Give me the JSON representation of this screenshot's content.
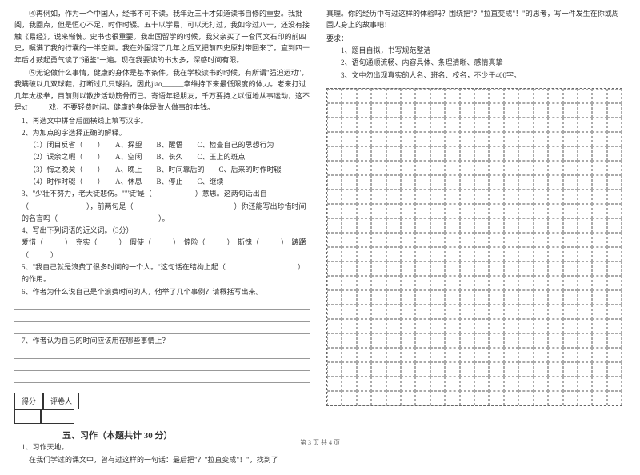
{
  "left": {
    "p4": "④再例如，作为一个中国人，经书不可不读。我年近三十才知道读书自修的重要。我批阅，我圈点，但是恒心不足，时作时辍。五十以学易，可以无打过，我如今过八十，还没有接触《易经》，说来惭愧。史书也很重要。我出国留学的时候，我父亲买了一套同文石印的前四史，嘱满了我的行囊的一半空间。我在外国混了几年之后又把前四史原封带回来了。直到四十年后才鼓起勇气读了\"通鉴\"一遍。现在我要读的书太多，深感时间有限。",
    "p5_a": "⑤无论做什么事情，健康的身体是基本条件。我在学校读书的时候，有所谓\"强迫运动\"，我瞒破以几双球鞋，打断过几只球拍，因此jiāo______幸维持下来最低限度的体力。老来打过几年太极拳，目前则以散步活动筋骨而已。寄语年轻朋友，千万要持之以恒地从事运动，这不是xī______戏，不要轻费时间。健康的身体是做人做事的本钱。",
    "q1": "1、再选文中拼音后面横线上填写汉字。",
    "q2": "2、为加点的字选择正确的解释。",
    "q2_1": "（1）闭目反省（　　）　　A、探望　　B、醒悟　　C、检查自己的思想行为",
    "q2_2": "（2）误余之暇（　　）　　A、空闲　　B、长久　　C、玉上的斑点",
    "q2_3": "（3）悔之晚矣（　　）　　A、晚上　　B、时间靠后的　　C、后来的时作时辍",
    "q2_4": "（4）时作时辍（　　）　　A、休息　　B、停止　　C、继续",
    "q3": "3、\"少壮不努力，老大徒悲伤。\"\"'徒'是（　　　　　　）意思。这两句话出自（　　　　　　　　），前两句是（　　　　　　　　　　　　　　）你还能写出珍惜时间的名言吗（　　　　　　　　　　　　　　）。",
    "q4": "4、写出下列词语的近义词。（3分）",
    "q4_words": "爱惜（　　　）　充实（　　　）　假使（　　　）　惊险（　　　）　斯愧（　　　）　踌躇（　　　）",
    "q5": "5、\"我自己就是浪费了很多时间的一个人。\"这句话在结构上起（　　　　　　　　　　）的作用。",
    "q6": "6、作者为什么说自己是个浪费时间的人，他举了几个事例？请概括写出来。",
    "q7": "7、作者认为自己的时间应该用在哪些事情上？",
    "score_label1": "得分",
    "score_label2": "评卷人",
    "section5": "五、习作（本题共计 30 分）",
    "essay_num": "1、习作天地。",
    "essay_intro": "在我们学过的课文中，曾有过这样的一句话：最后把\"？\"拉直变成\"！\"，找到了"
  },
  "right": {
    "essay_cont": "真理。你的经历中有过这样的体验吗？围绕把\"？\"拉直变成\"！\"的思考，写一件发生在你或周围人身上的故事吧！",
    "req_title": "要求：",
    "req1": "1、题目自拟，书写规范整洁",
    "req2": "2、语句通顺流畅、内容具体、条理清晰、感情真挚",
    "req3": "3、文中勿出现真实的人名、班名、校名，不少于400字。"
  },
  "footer": "第 3 页 共 4 页",
  "grid": {
    "rows": 22,
    "cols": 20
  }
}
